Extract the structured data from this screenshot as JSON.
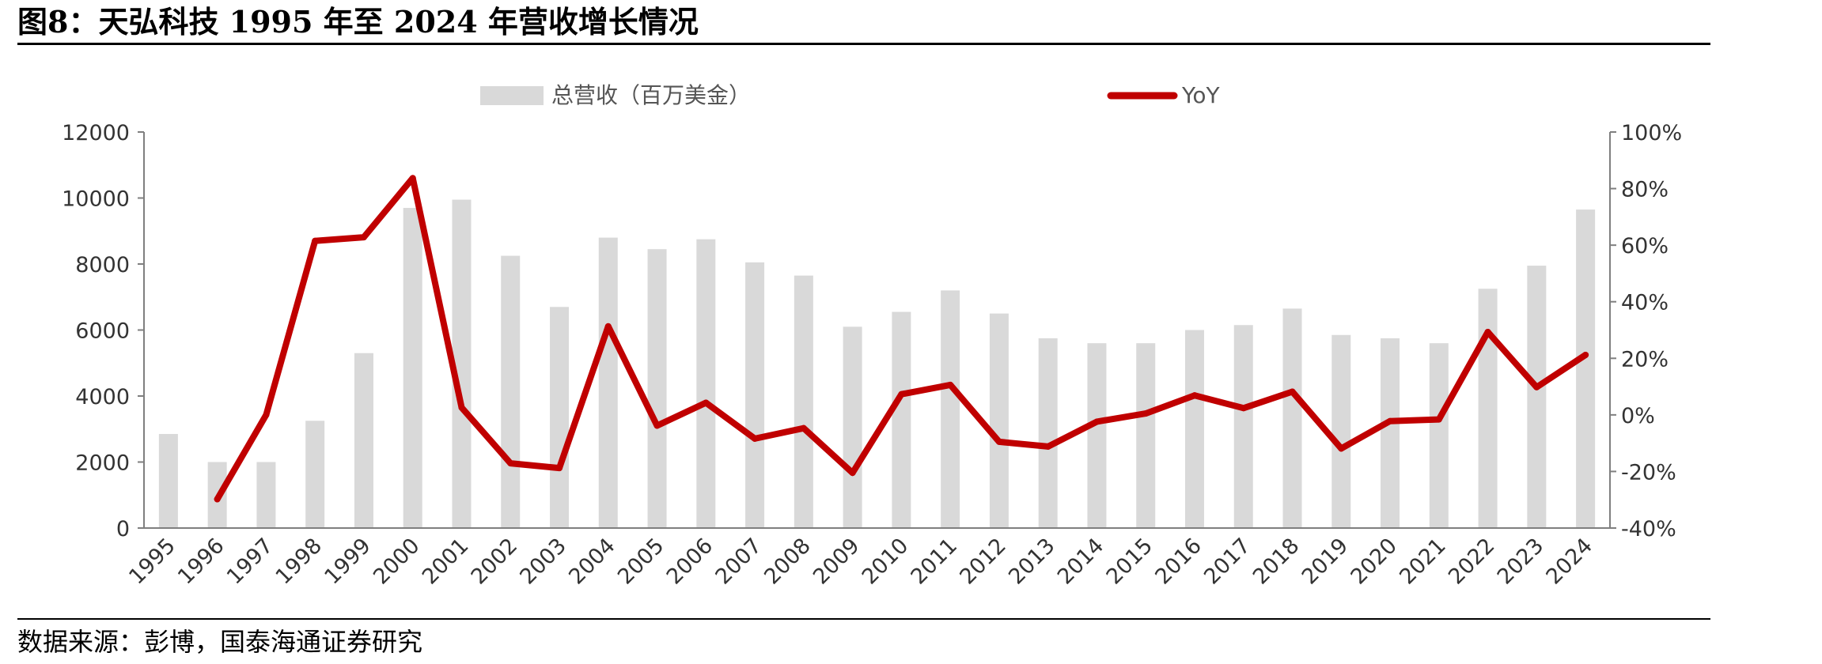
{
  "header": {
    "title": "图8：天弘科技 1995 年至 2024 年营收增长情况"
  },
  "footer": {
    "source": "数据来源：彭博，国泰海通证券研究"
  },
  "colors": {
    "bar": "#d9d9d9",
    "line": "#c00000",
    "axis": "#7f7f7f"
  },
  "chart_data": {
    "type": "bar+line",
    "categories": [
      "1995",
      "1996",
      "1997",
      "1998",
      "1999",
      "2000",
      "2001",
      "2002",
      "2003",
      "2004",
      "2005",
      "2006",
      "2007",
      "2008",
      "2009",
      "2010",
      "2011",
      "2012",
      "2013",
      "2014",
      "2015",
      "2016",
      "2017",
      "2018",
      "2019",
      "2020",
      "2021",
      "2022",
      "2023",
      "2024"
    ],
    "series": [
      {
        "name": "总营收（百万美金）",
        "type": "bar",
        "axis": "left",
        "values": [
          2850,
          2000,
          2000,
          3250,
          5300,
          9700,
          9950,
          8250,
          6700,
          8800,
          8450,
          8750,
          8050,
          7650,
          6100,
          6550,
          7200,
          6500,
          5750,
          5600,
          5600,
          6000,
          6150,
          6650,
          5850,
          5750,
          5600,
          7250,
          7950,
          9650
        ]
      },
      {
        "name": "YoY",
        "type": "line",
        "axis": "right",
        "values": [
          null,
          -29.8,
          0,
          61.5,
          62.8,
          83.7,
          2.6,
          -17.1,
          -18.8,
          31.3,
          -3.8,
          4.3,
          -8.4,
          -4.7,
          -20.5,
          7.3,
          10.6,
          -9.5,
          -11.2,
          -2.4,
          0.5,
          6.9,
          2.4,
          8.2,
          -11.9,
          -2.2,
          -1.6,
          29.3,
          9.8,
          21.2
        ]
      }
    ],
    "left_axis": {
      "min": 0,
      "max": 12000,
      "ticks": [
        "0",
        "2000",
        "4000",
        "6000",
        "8000",
        "10000",
        "12000"
      ]
    },
    "right_axis": {
      "min": -40,
      "max": 100,
      "ticks": [
        "-40%",
        "-20%",
        "0%",
        "20%",
        "40%",
        "60%",
        "80%",
        "100%"
      ]
    },
    "legend_position": "top-center",
    "grid": false
  }
}
